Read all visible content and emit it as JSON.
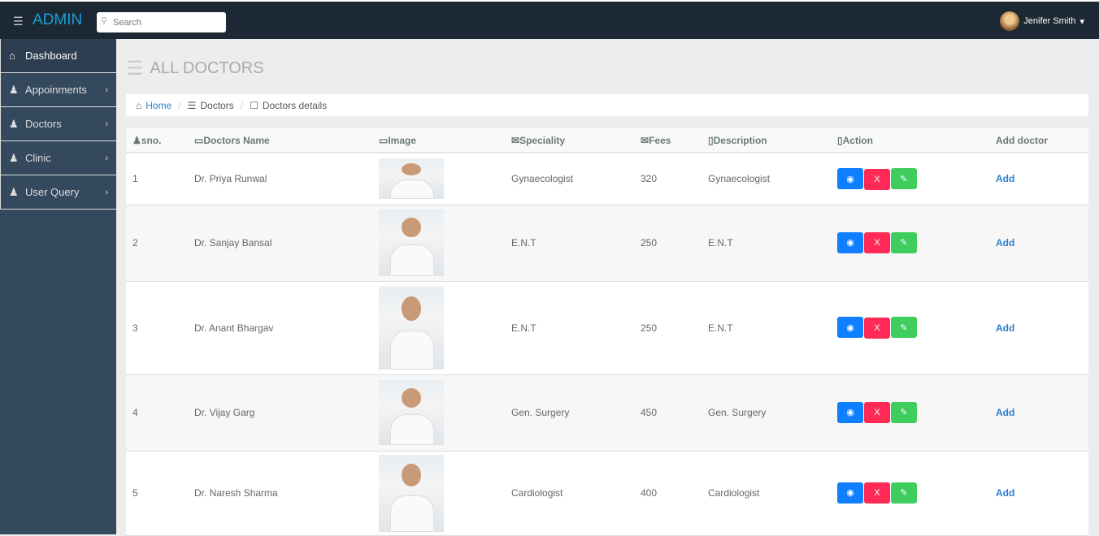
{
  "header": {
    "brand": "ADMIN",
    "search_placeholder": "Search",
    "user_name": "Jenifer Smith"
  },
  "sidebar": {
    "items": [
      {
        "label": "Dashboard",
        "icon": "home-icon"
      },
      {
        "label": "Appoinments",
        "icon": "user-icon"
      },
      {
        "label": "Doctors",
        "icon": "user-icon"
      },
      {
        "label": "Clinic",
        "icon": "user-icon"
      },
      {
        "label": "User Query",
        "icon": "user-icon"
      }
    ]
  },
  "page": {
    "title": "ALL DOCTORS"
  },
  "breadcrumb": {
    "home": "Home",
    "doctors": "Doctors",
    "details": "Doctors details"
  },
  "table": {
    "headers": [
      "sno.",
      "Doctors Name",
      "Image",
      "Speciality",
      "Fees",
      "Description",
      "Action",
      "Add doctor"
    ],
    "rows": [
      {
        "sno": "1",
        "name": "Dr. Priya Runwal",
        "speciality": "Gynaecologist",
        "fees": "320",
        "description": "Gynaecologist",
        "add": "Add"
      },
      {
        "sno": "2",
        "name": "Dr. Sanjay Bansal",
        "speciality": "E.N.T",
        "fees": "250",
        "description": "E.N.T",
        "add": "Add"
      },
      {
        "sno": "3",
        "name": "Dr. Anant Bhargav",
        "speciality": "E.N.T",
        "fees": "250",
        "description": "E.N.T",
        "add": "Add"
      },
      {
        "sno": "4",
        "name": "Dr. Vijay Garg",
        "speciality": "Gen. Surgery",
        "fees": "450",
        "description": "Gen. Surgery",
        "add": "Add"
      },
      {
        "sno": "5",
        "name": "Dr. Naresh Sharma",
        "speciality": "Cardiologist",
        "fees": "400",
        "description": "Cardiologist",
        "add": "Add"
      }
    ],
    "delete_label": "X"
  },
  "colors": {
    "topbar": "#1c2833",
    "sidebar": "#34495e",
    "brand": "#1a9fd6",
    "view": "#0f7fff",
    "delete": "#ff2a55",
    "edit": "#3fcd5e"
  }
}
